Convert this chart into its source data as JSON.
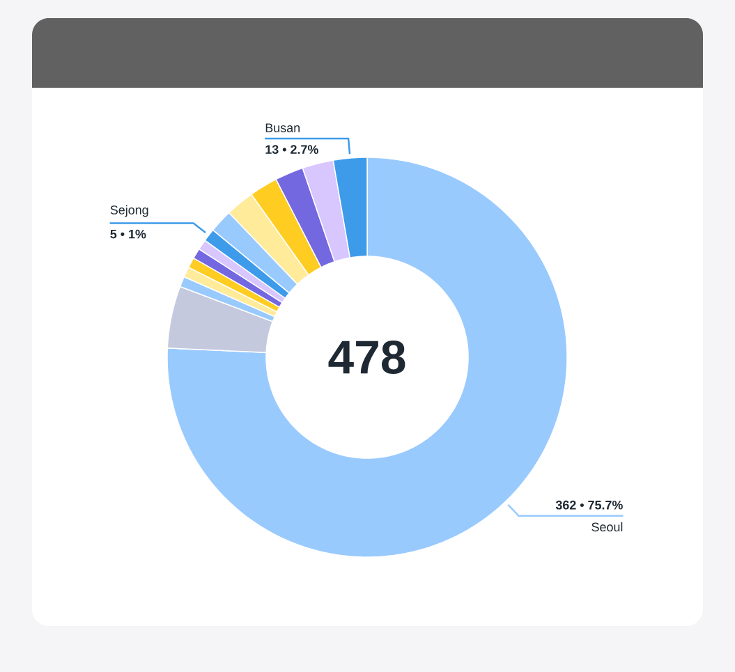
{
  "chart_data": {
    "type": "donut",
    "categories": [
      "Seoul",
      null,
      null,
      null,
      null,
      null,
      null,
      "Sejong",
      null,
      null,
      null,
      null,
      null,
      "Busan"
    ],
    "values": [
      362,
      24,
      4,
      4,
      4,
      4,
      4,
      5,
      9,
      11,
      11,
      11,
      12,
      13
    ],
    "colors": [
      "#99cafe",
      "#c4c9de",
      "#99cafe",
      "#ffeb99",
      "#ffcc22",
      "#7468e0",
      "#d8c6ff",
      "#3d9be9",
      "#99cafe",
      "#ffeb99",
      "#ffcc22",
      "#7468e0",
      "#d8c6ff",
      "#3d9be9"
    ],
    "value_labels": [
      "362 • 75.7%",
      null,
      null,
      null,
      null,
      null,
      null,
      "5 • 1%",
      null,
      null,
      null,
      null,
      null,
      "13 • 2.7%"
    ],
    "annotations": [
      "478"
    ]
  }
}
